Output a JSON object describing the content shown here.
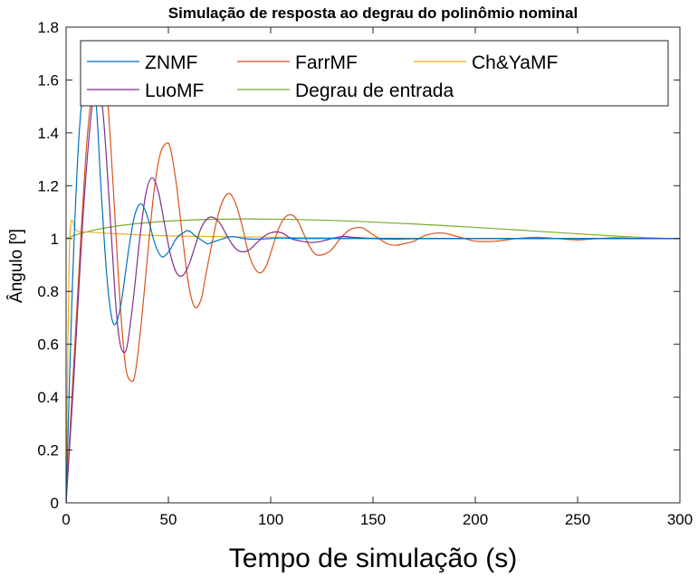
{
  "chart_data": {
    "type": "line",
    "title": "Simulação de resposta ao degrau do polinômio nominal",
    "xlabel": "Tempo de simulação (s)",
    "ylabel": "Ângulo [º]",
    "xlim": [
      0,
      300
    ],
    "ylim": [
      0,
      1.8
    ],
    "xticks": [
      0,
      50,
      100,
      150,
      200,
      250,
      300
    ],
    "yticks": [
      0,
      0.2,
      0.4,
      0.6,
      0.8,
      1,
      1.2,
      1.4,
      1.6,
      1.8
    ],
    "xtick_labels": [
      "0",
      "50",
      "100",
      "150",
      "200",
      "250",
      "300"
    ],
    "ytick_labels": [
      "0",
      "0.2",
      "0.4",
      "0.6",
      "0.8",
      "1",
      "1.2",
      "1.4",
      "1.6",
      "1.8"
    ],
    "grid": false,
    "legend_position": "top",
    "series": [
      {
        "name": "ZNMF",
        "color": "#0072BD",
        "x": [
          0,
          3,
          6,
          9,
          11,
          13,
          15,
          17,
          19,
          21,
          23,
          25,
          27,
          29,
          31,
          33,
          35,
          37,
          39,
          41,
          43,
          45,
          47,
          49,
          51,
          53,
          55,
          57,
          59,
          61,
          63,
          65,
          67,
          69,
          71,
          73,
          75,
          77,
          79,
          81,
          83,
          85,
          87,
          90,
          95,
          100,
          105,
          110,
          115,
          120,
          130,
          140,
          150,
          170,
          200,
          250,
          300
        ],
        "y": [
          0,
          0.8,
          1.35,
          1.62,
          1.7,
          1.65,
          1.48,
          1.2,
          0.95,
          0.77,
          0.68,
          0.69,
          0.76,
          0.87,
          0.98,
          1.07,
          1.12,
          1.13,
          1.1,
          1.05,
          0.99,
          0.95,
          0.93,
          0.94,
          0.96,
          0.99,
          1.01,
          1.02,
          1.03,
          1.025,
          1.01,
          1.0,
          0.99,
          0.98,
          0.985,
          0.99,
          0.995,
          1.0,
          1.005,
          1.007,
          1.006,
          1.003,
          1.0,
          0.998,
          0.998,
          1.0,
          1.002,
          1.001,
          1.0,
          1.0,
          1.0,
          1.0,
          1.0,
          1.0,
          1.0,
          1.0,
          1.0
        ]
      },
      {
        "name": "FarrMF",
        "color": "#D95319",
        "x": [
          0,
          5,
          10,
          14,
          17,
          20,
          23,
          26,
          29,
          32,
          34,
          37,
          40,
          43,
          46,
          49,
          51,
          54,
          57,
          60,
          63,
          66,
          68,
          71,
          74,
          77,
          80,
          83,
          86,
          89,
          92,
          95,
          98,
          101,
          104,
          107,
          110,
          113,
          116,
          119,
          122,
          126,
          130,
          134,
          138,
          141,
          145,
          149,
          153,
          157,
          161,
          165,
          170,
          175,
          180,
          185,
          190,
          195,
          200,
          210,
          220,
          230,
          240,
          250,
          260,
          270,
          280,
          300
        ],
        "y": [
          0,
          0.7,
          1.35,
          1.62,
          1.68,
          1.55,
          1.2,
          0.8,
          0.52,
          0.46,
          0.5,
          0.7,
          0.95,
          1.18,
          1.32,
          1.36,
          1.34,
          1.2,
          1.0,
          0.82,
          0.74,
          0.77,
          0.85,
          0.97,
          1.08,
          1.15,
          1.17,
          1.13,
          1.05,
          0.95,
          0.89,
          0.87,
          0.9,
          0.97,
          1.04,
          1.08,
          1.09,
          1.07,
          1.02,
          0.97,
          0.94,
          0.94,
          0.96,
          1.0,
          1.03,
          1.04,
          1.04,
          1.02,
          1.0,
          0.98,
          0.975,
          0.98,
          0.99,
          1.01,
          1.02,
          1.02,
          1.01,
          1.0,
          0.99,
          0.99,
          1.0,
          1.005,
          1.0,
          0.995,
          1.0,
          1.003,
          1.0,
          1.0
        ]
      },
      {
        "name": "Ch&YaMF",
        "color": "#EDB120",
        "x": [
          0,
          0.8,
          1.5,
          2.2,
          3,
          3.8,
          5,
          7,
          10,
          20,
          50,
          100,
          150,
          200,
          300
        ],
        "y": [
          0,
          0.55,
          0.92,
          1.05,
          1.07,
          1.05,
          1.03,
          1.025,
          1.025,
          1.02,
          1.01,
          1.005,
          1.002,
          1.0,
          1.0
        ]
      },
      {
        "name": "LuoMF",
        "color": "#7E2F8E",
        "x": [
          0,
          4,
          8,
          12,
          15,
          18,
          21,
          24,
          26,
          28,
          30,
          33,
          36,
          39,
          42,
          45,
          48,
          51,
          54,
          57,
          60,
          63,
          66,
          69,
          72,
          75,
          78,
          81,
          84,
          87,
          90,
          94,
          98,
          102,
          106,
          110,
          115,
          120,
          125,
          130,
          135,
          140,
          150,
          160,
          180,
          220,
          300
        ],
        "y": [
          0,
          0.5,
          1.05,
          1.45,
          1.6,
          1.48,
          1.15,
          0.78,
          0.62,
          0.57,
          0.6,
          0.78,
          1.0,
          1.17,
          1.23,
          1.18,
          1.06,
          0.94,
          0.87,
          0.86,
          0.9,
          0.97,
          1.04,
          1.075,
          1.08,
          1.06,
          1.02,
          0.98,
          0.955,
          0.95,
          0.96,
          0.99,
          1.015,
          1.025,
          1.02,
          1.0,
          0.99,
          0.985,
          0.99,
          1.0,
          1.008,
          1.005,
          1.0,
          0.998,
          1.0,
          1.0,
          1.0
        ]
      },
      {
        "name": "Degrau de entrada",
        "color": "#77AC30",
        "x": [
          0,
          0,
          300
        ],
        "y": [
          0,
          1,
          1
        ]
      }
    ]
  }
}
